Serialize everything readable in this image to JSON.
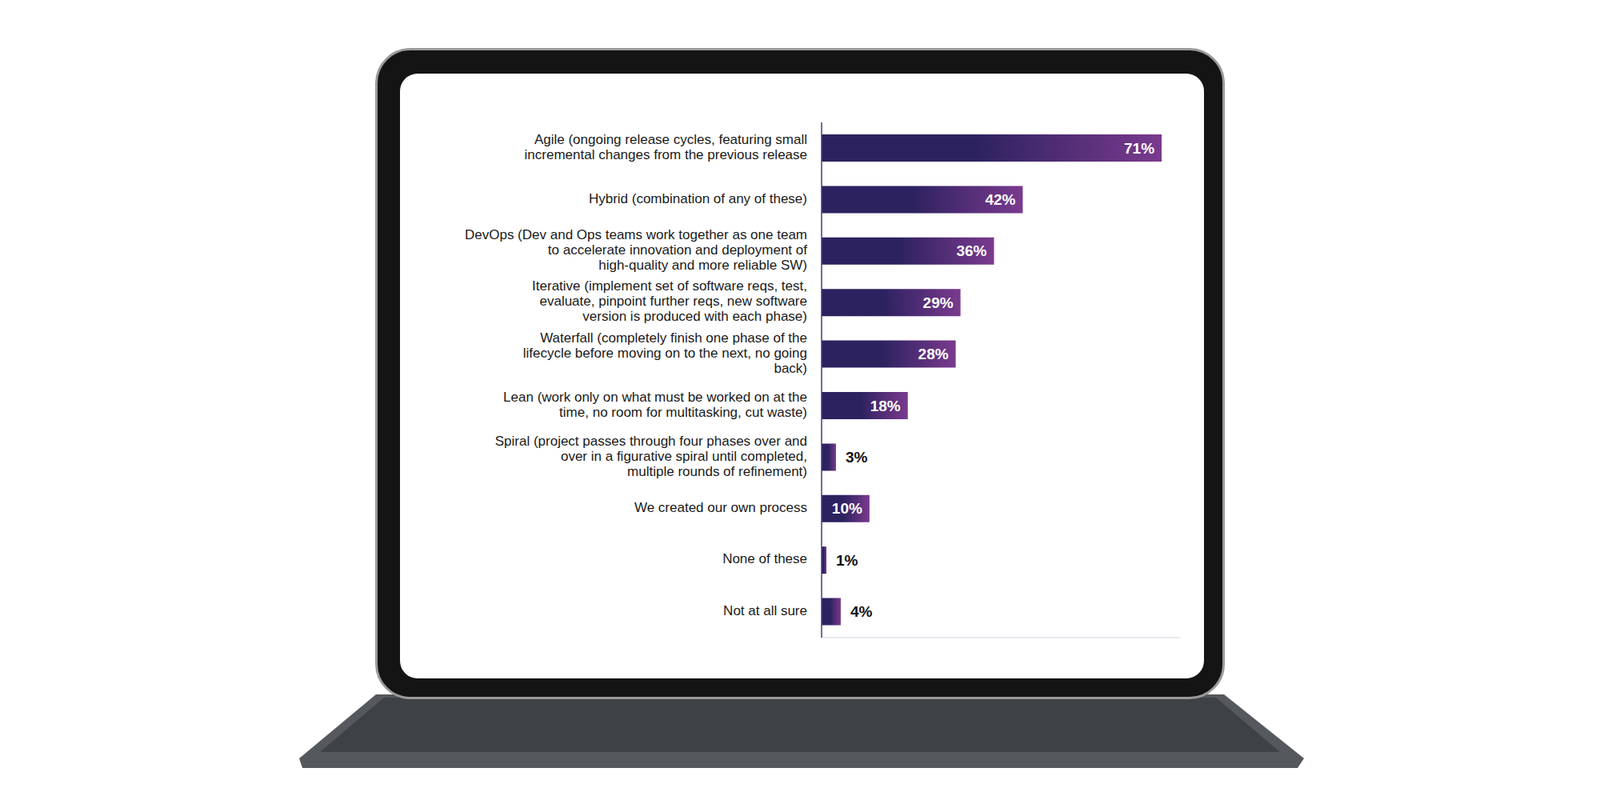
{
  "chart_data": {
    "type": "bar",
    "orientation": "horizontal",
    "categories": [
      "Agile (ongoing release cycles, featuring small incremental changes from the previous release",
      "Hybrid (combination of any of these)",
      "DevOps (Dev and Ops teams work together as one team to accelerate innovation and deployment of high-quality and more reliable SW)",
      "Iterative (implement set of software reqs, test, evaluate, pinpoint further reqs, new software version is produced with each phase)",
      "Waterfall (completely finish one phase of the lifecycle before moving on to the next, no going back)",
      "Lean (work only on what must be worked on at the time, no room for multitasking, cut waste)",
      "Spiral (project passes through four phases over and over in a figurative spiral until completed, multiple rounds of refinement)",
      "We created our own process",
      "None of these",
      "Not at all sure"
    ],
    "values": [
      71,
      42,
      36,
      29,
      28,
      18,
      3,
      10,
      1,
      4
    ],
    "value_labels": [
      "71%",
      "42%",
      "36%",
      "29%",
      "28%",
      "18%",
      "3%",
      "10%",
      "1%",
      "4%"
    ],
    "color": "#2d2260",
    "xlim": [
      0,
      75
    ],
    "data_labels": true,
    "tick_labels": "y",
    "grid": false
  }
}
